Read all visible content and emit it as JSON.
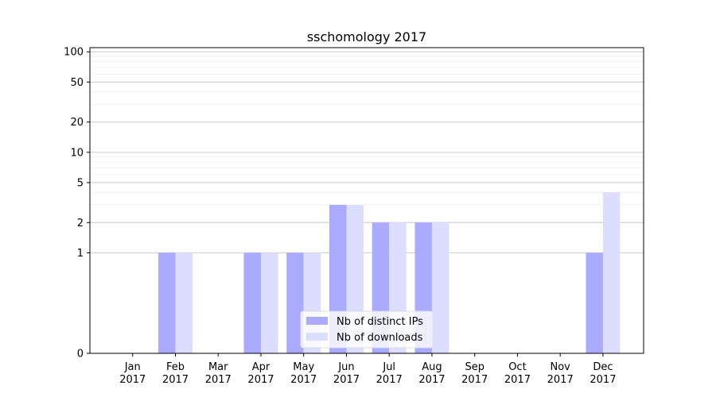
{
  "chart_data": {
    "type": "bar",
    "title": "sschomology 2017",
    "xlabel": "",
    "ylabel": "",
    "y_scale": "symlog",
    "ylim": [
      0,
      110
    ],
    "grid": true,
    "legend_position": "bottom-center",
    "categories": [
      "Jan\n2017",
      "Feb\n2017",
      "Mar\n2017",
      "Apr\n2017",
      "May\n2017",
      "Jun\n2017",
      "Jul\n2017",
      "Aug\n2017",
      "Sep\n2017",
      "Oct\n2017",
      "Nov\n2017",
      "Dec\n2017"
    ],
    "category_lines": [
      [
        "Jan",
        "2017"
      ],
      [
        "Feb",
        "2017"
      ],
      [
        "Mar",
        "2017"
      ],
      [
        "Apr",
        "2017"
      ],
      [
        "May",
        "2017"
      ],
      [
        "Jun",
        "2017"
      ],
      [
        "Jul",
        "2017"
      ],
      [
        "Aug",
        "2017"
      ],
      [
        "Sep",
        "2017"
      ],
      [
        "Oct",
        "2017"
      ],
      [
        "Nov",
        "2017"
      ],
      [
        "Dec",
        "2017"
      ]
    ],
    "y_ticks": [
      0,
      1,
      2,
      5,
      10,
      20,
      50,
      100
    ],
    "y_tick_labels": [
      "0",
      "1",
      "2",
      "5",
      "10",
      "20",
      "50",
      "100"
    ],
    "series": [
      {
        "name": "Nb of distinct IPs",
        "color": "#aaaaff",
        "values": [
          0,
          1,
          0,
          1,
          1,
          3,
          2,
          2,
          0,
          0,
          0,
          1
        ]
      },
      {
        "name": "Nb of downloads",
        "color": "#ddddff",
        "values": [
          0,
          1,
          0,
          1,
          1,
          3,
          2,
          2,
          0,
          0,
          0,
          4
        ]
      }
    ]
  }
}
